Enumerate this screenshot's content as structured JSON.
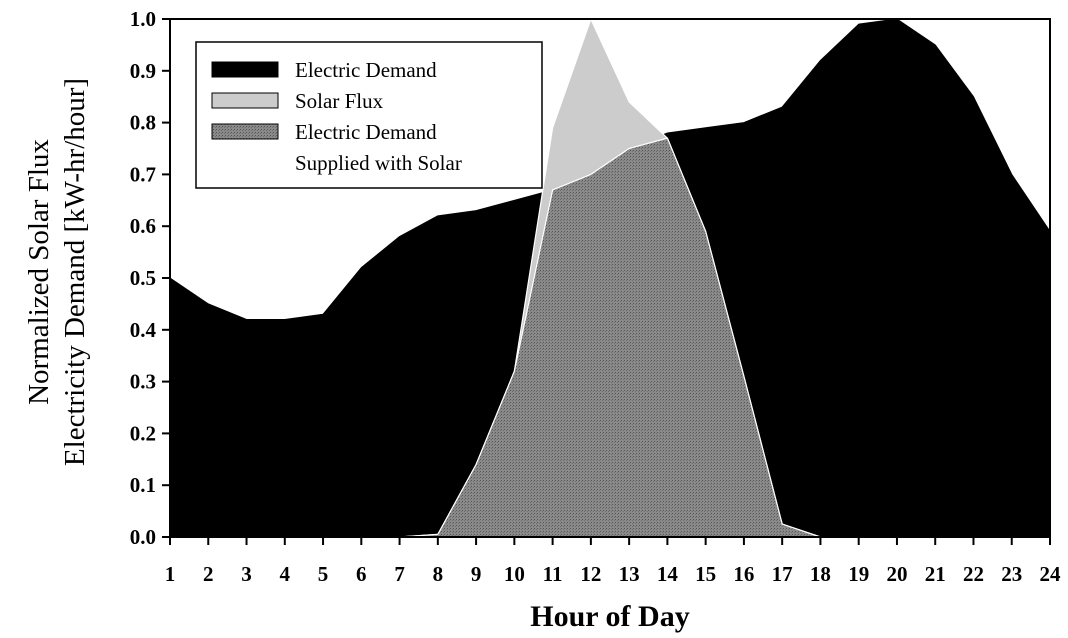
{
  "chart_data": {
    "type": "area",
    "xlabel": "Hour of Day",
    "ylabel_lines": [
      "Normalized Solar Flux",
      "Electricity Demand [kW-hr/hour]"
    ],
    "xlim": [
      1,
      24
    ],
    "ylim": [
      0,
      1.0
    ],
    "x": [
      1,
      2,
      3,
      4,
      5,
      6,
      7,
      8,
      9,
      10,
      11,
      12,
      13,
      14,
      15,
      16,
      17,
      18,
      19,
      20,
      21,
      22,
      23,
      24
    ],
    "x_ticks": [
      "1",
      "2",
      "3",
      "4",
      "5",
      "6",
      "7",
      "8",
      "9",
      "10",
      "11",
      "12",
      "13",
      "14",
      "15",
      "16",
      "17",
      "18",
      "19",
      "20",
      "21",
      "22",
      "23",
      "24"
    ],
    "y_ticks": [
      "0.0",
      "0.1",
      "0.2",
      "0.3",
      "0.4",
      "0.5",
      "0.6",
      "0.7",
      "0.8",
      "0.9",
      "1.0"
    ],
    "grid": false,
    "legend_position": "top-left",
    "series": [
      {
        "name": "Electric Demand",
        "color": "#000000",
        "values": [
          0.5,
          0.45,
          0.42,
          0.42,
          0.43,
          0.52,
          0.58,
          0.62,
          0.63,
          0.65,
          0.67,
          0.7,
          0.75,
          0.78,
          0.79,
          0.8,
          0.83,
          0.92,
          0.99,
          1.0,
          0.95,
          0.85,
          0.7,
          0.59
        ]
      },
      {
        "name": "Solar Flux",
        "color": "#cccccc",
        "values": [
          0,
          0,
          0,
          0,
          0,
          0,
          0,
          0.005,
          0.14,
          0.32,
          0.79,
          1.0,
          0.84,
          0.77,
          0.59,
          0.31,
          0.025,
          0,
          0,
          0,
          0,
          0,
          0,
          0
        ]
      },
      {
        "name_lines": [
          "Electric Demand",
          "Supplied with Solar"
        ],
        "color": "#7f7f7f",
        "values": [
          0,
          0,
          0,
          0,
          0,
          0,
          0,
          0.005,
          0.14,
          0.32,
          0.67,
          0.7,
          0.75,
          0.77,
          0.59,
          0.31,
          0.025,
          0,
          0,
          0,
          0,
          0,
          0,
          0
        ]
      }
    ]
  }
}
